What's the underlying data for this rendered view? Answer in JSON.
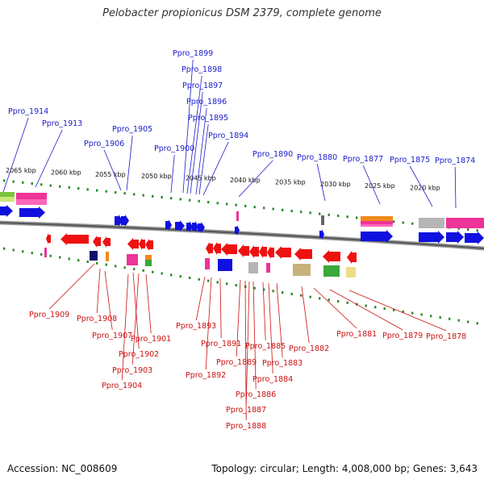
{
  "title": "Pelobacter propionicus DSM 2379, complete genome",
  "accession": "Accession: NC_008609",
  "summary": "Topology: circular; Length: 4,008,000 bp; Genes: 3,643",
  "colors": {
    "top_label": "#1a1acc",
    "bottom_label": "#cc1111",
    "forward_gene": "#1010e0",
    "reverse_gene": "#ee1111",
    "tick": "#2a8a2a",
    "backbone": "#777777"
  },
  "scale_ticks": [
    "2065 kbp",
    "2060 kbp",
    "2055 kbp",
    "2050 kbp",
    "2045 kbp",
    "2040 kbp",
    "2035 kbp",
    "2030 kbp",
    "2025 kbp",
    "2020 kbp"
  ],
  "top_genes": [
    "Ppro_1914",
    "Ppro_1913",
    "Ppro_1906",
    "Ppro_1905",
    "Ppro_1900",
    "Ppro_1899",
    "Ppro_1898",
    "Ppro_1897",
    "Ppro_1896",
    "Ppro_1895",
    "Ppro_1894",
    "Ppro_1890",
    "Ppro_1880",
    "Ppro_1877",
    "Ppro_1875",
    "Ppro_1874"
  ],
  "bottom_genes": [
    "Ppro_1909",
    "Ppro_1908",
    "Ppro_1907",
    "Ppro_1902",
    "Ppro_1903",
    "Ppro_1904",
    "Ppro_1901",
    "Ppro_1893",
    "Ppro_1892",
    "Ppro_1891",
    "Ppro_1889",
    "Ppro_1888",
    "Ppro_1887",
    "Ppro_1886",
    "Ppro_1885",
    "Ppro_1884",
    "Ppro_1883",
    "Ppro_1882",
    "Ppro_1881",
    "Ppro_1879",
    "Ppro_1878"
  ]
}
